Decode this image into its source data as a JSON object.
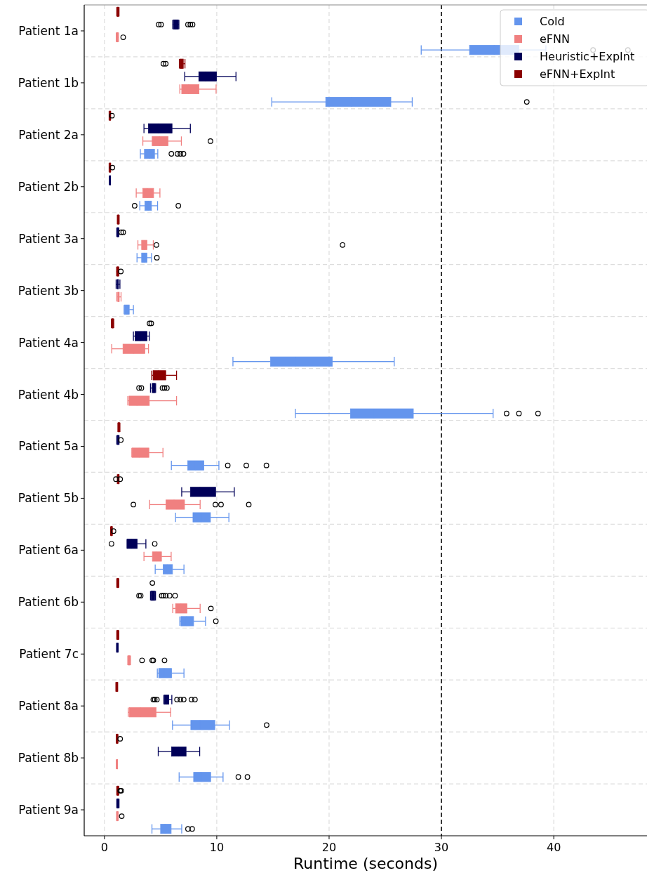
{
  "chart_data": {
    "type": "box",
    "orientation": "horizontal",
    "xlabel": "Runtime (seconds)",
    "categories": [
      "Patient 1a",
      "Patient 1b",
      "Patient 2a",
      "Patient 2b",
      "Patient 3a",
      "Patient 3b",
      "Patient 4a",
      "Patient 4b",
      "Patient 5a",
      "Patient 5b",
      "Patient 6a",
      "Patient 6b",
      "Patient 7c",
      "Patient 8a",
      "Patient 8b",
      "Patient 9a"
    ],
    "xlim": [
      -1.8,
      48.3
    ],
    "xticks": [
      0,
      10,
      20,
      30,
      40
    ],
    "grid": true,
    "legend": "top right",
    "ref_lines": [
      {
        "axis": "x",
        "value": 30,
        "color": "#000000",
        "line_style": "dashed"
      }
    ],
    "series": [
      {
        "name": "Cold",
        "color": "#6495ed",
        "boxes": [
          {
            "low": 28.2,
            "q1": 32.5,
            "median": 34.7,
            "q3": 36.9,
            "high": 39.3,
            "outliers": [
              43.5,
              46.6
            ]
          },
          {
            "low": 14.9,
            "q1": 19.7,
            "median": 22.0,
            "q3": 25.5,
            "high": 27.4,
            "outliers": [
              37.6
            ]
          },
          {
            "low": 3.2,
            "q1": 3.56,
            "median": 4.0,
            "q3": 4.46,
            "high": 4.75,
            "outliers": [
              5.96,
              6.5,
              6.77,
              7.04
            ]
          },
          {
            "low": 3.15,
            "q1": 3.6,
            "median": 3.9,
            "q3": 4.19,
            "high": 4.73,
            "outliers": [
              2.69,
              6.58
            ]
          },
          {
            "low": 2.9,
            "q1": 3.31,
            "median": 3.55,
            "q3": 3.79,
            "high": 4.19,
            "outliers": [
              4.67
            ]
          },
          {
            "low": 1.75,
            "q1": 1.79,
            "median": 2.0,
            "q3": 2.21,
            "high": 2.58
          },
          {
            "low": 11.44,
            "q1": 14.79,
            "median": 17.0,
            "q3": 20.29,
            "high": 25.8
          },
          {
            "low": 17.0,
            "q1": 21.9,
            "median": 24.0,
            "q3": 27.5,
            "high": 34.6,
            "outliers": [
              35.8,
              36.9,
              38.6
            ]
          },
          {
            "low": 5.96,
            "q1": 7.42,
            "median": 8.1,
            "q3": 8.85,
            "high": 10.19,
            "outliers": [
              10.98,
              12.63,
              14.42
            ]
          },
          {
            "low": 6.33,
            "q1": 7.88,
            "median": 8.6,
            "q3": 9.44,
            "high": 11.08
          },
          {
            "low": 4.52,
            "q1": 5.23,
            "median": 5.6,
            "q3": 6.06,
            "high": 7.08
          },
          {
            "low": 6.71,
            "q1": 6.81,
            "median": 7.3,
            "q3": 7.94,
            "high": 9.0,
            "outliers": [
              9.92
            ]
          },
          {
            "low": 4.71,
            "q1": 4.83,
            "median": 5.3,
            "q3": 5.98,
            "high": 7.08
          },
          {
            "low": 6.06,
            "q1": 7.69,
            "median": 8.5,
            "q3": 9.83,
            "high": 11.13,
            "outliers": [
              14.44
            ]
          },
          {
            "low": 6.65,
            "q1": 7.94,
            "median": 8.6,
            "q3": 9.46,
            "high": 10.56,
            "outliers": [
              11.92,
              12.73
            ]
          },
          {
            "low": 4.23,
            "q1": 5.0,
            "median": 5.4,
            "q3": 5.94,
            "high": 6.88,
            "outliers": [
              7.44,
              7.81
            ]
          }
        ]
      },
      {
        "name": "eFNN",
        "color": "#f08080",
        "boxes": [
          {
            "low": 1.05,
            "q1": 1.1,
            "median": 1.15,
            "q3": 1.2,
            "high": 1.25,
            "outliers": [
              1.67
            ]
          },
          {
            "low": 6.71,
            "q1": 6.88,
            "median": 7.5,
            "q3": 8.42,
            "high": 9.94
          },
          {
            "low": 3.42,
            "q1": 4.25,
            "median": 4.9,
            "q3": 5.67,
            "high": 6.85,
            "outliers": [
              9.44
            ]
          },
          {
            "low": 2.83,
            "q1": 3.42,
            "median": 3.8,
            "q3": 4.38,
            "high": 4.94
          },
          {
            "low": 2.98,
            "q1": 3.31,
            "median": 3.55,
            "q3": 3.79,
            "high": 4.35,
            "outliers": [
              4.63,
              21.2
            ]
          },
          {
            "low": 1.1,
            "q1": 1.18,
            "median": 1.25,
            "q3": 1.32,
            "high": 1.48
          },
          {
            "low": 0.65,
            "q1": 1.65,
            "median": 2.6,
            "q3": 3.6,
            "high": 3.92
          },
          {
            "low": 2.08,
            "q1": 2.19,
            "median": 2.9,
            "q3": 4.0,
            "high": 6.42
          },
          {
            "low": 2.44,
            "q1": 2.48,
            "median": 3.1,
            "q3": 3.96,
            "high": 5.21
          },
          {
            "low": 4.02,
            "q1": 5.48,
            "median": 6.2,
            "q3": 7.13,
            "high": 8.52,
            "outliers": [
              2.58,
              9.88,
              10.38,
              12.85
            ]
          },
          {
            "low": 3.52,
            "q1": 4.27,
            "median": 4.6,
            "q3": 5.08,
            "high": 5.94
          },
          {
            "low": 6.08,
            "q1": 6.33,
            "median": 6.8,
            "q3": 7.35,
            "high": 8.52,
            "outliers": [
              9.48
            ]
          },
          {
            "low": 2.08,
            "q1": 2.12,
            "median": 2.19,
            "q3": 2.28,
            "high": 2.32,
            "outliers": [
              3.35,
              4.25,
              4.35,
              5.35
            ]
          },
          {
            "low": 2.12,
            "q1": 2.21,
            "median": 3.2,
            "q3": 4.6,
            "high": 5.9
          },
          {
            "low": 1.05,
            "q1": 1.08,
            "median": 1.1,
            "q3": 1.13,
            "high": 1.16
          },
          {
            "low": 1.08,
            "q1": 1.11,
            "median": 1.15,
            "q3": 1.19,
            "high": 1.22,
            "outliers": [
              1.54
            ]
          }
        ]
      },
      {
        "name": "Heuristic+ExpInt",
        "color": "#000058",
        "boxes": [
          {
            "low": 6.08,
            "q1": 6.15,
            "median": 6.35,
            "q3": 6.58,
            "high": 6.63,
            "outliers": [
              4.83,
              5.04,
              7.44,
              7.65,
              7.85
            ]
          },
          {
            "low": 7.15,
            "q1": 8.4,
            "median": 9.0,
            "q3": 9.98,
            "high": 11.71
          },
          {
            "low": 3.52,
            "q1": 3.92,
            "median": 4.8,
            "q3": 6.02,
            "high": 7.65
          },
          {
            "low": 0.44,
            "q1": 0.46,
            "median": 0.48,
            "q3": 0.5,
            "high": 0.52
          },
          {
            "low": 1.1,
            "q1": 1.15,
            "median": 1.19,
            "q3": 1.23,
            "high": 1.28,
            "outliers": [
              1.5,
              1.67
            ]
          },
          {
            "low": 1.04,
            "q1": 1.13,
            "median": 1.19,
            "q3": 1.25,
            "high": 1.38
          },
          {
            "low": 2.58,
            "q1": 2.73,
            "median": 3.2,
            "q3": 3.79,
            "high": 4.0
          },
          {
            "low": 4.1,
            "q1": 4.25,
            "median": 4.4,
            "q3": 4.52,
            "high": 4.56,
            "outliers": [
              3.08,
              3.29,
              5.17,
              5.35,
              5.56
            ]
          },
          {
            "low": 1.1,
            "q1": 1.16,
            "median": 1.21,
            "q3": 1.26,
            "high": 1.3,
            "outliers": [
              1.46
            ]
          },
          {
            "low": 6.88,
            "q1": 7.65,
            "median": 8.5,
            "q3": 9.9,
            "high": 11.56
          },
          {
            "low": 2.02,
            "q1": 2.02,
            "median": 2.4,
            "q3": 2.92,
            "high": 3.69,
            "outliers": [
              0.63,
              4.48
            ]
          },
          {
            "low": 4.1,
            "q1": 4.17,
            "median": 4.3,
            "q3": 4.48,
            "high": 4.55,
            "outliers": [
              3.08,
              3.23,
              5.1,
              5.25,
              5.46,
              5.81,
              6.29
            ]
          },
          {
            "low": 1.08,
            "q1": 1.11,
            "median": 1.15,
            "q3": 1.19,
            "high": 1.22
          },
          {
            "low": 5.29,
            "q1": 5.33,
            "median": 5.5,
            "q3": 5.73,
            "high": 6.0,
            "outliers": [
              4.35,
              4.48,
              4.67,
              6.46,
              6.77,
              7.06,
              7.75,
              8.06
            ]
          },
          {
            "low": 4.79,
            "q1": 5.98,
            "median": 6.6,
            "q3": 7.27,
            "high": 8.48
          },
          {
            "low": 1.1,
            "q1": 1.14,
            "median": 1.19,
            "q3": 1.24,
            "high": 1.3
          }
        ]
      },
      {
        "name": "eFNN+ExpInt",
        "color": "#8b0000",
        "boxes": [
          {
            "low": 1.1,
            "q1": 1.15,
            "median": 1.2,
            "q3": 1.25,
            "high": 1.3
          },
          {
            "low": 6.67,
            "q1": 6.71,
            "median": 6.85,
            "q3": 7.02,
            "high": 7.17,
            "outliers": [
              5.25,
              5.46
            ]
          },
          {
            "low": 0.42,
            "q1": 0.45,
            "median": 0.48,
            "q3": 0.52,
            "high": 0.55,
            "outliers": [
              0.67
            ]
          },
          {
            "low": 0.42,
            "q1": 0.45,
            "median": 0.48,
            "q3": 0.52,
            "high": 0.55,
            "outliers": [
              0.71
            ]
          },
          {
            "low": 1.15,
            "q1": 1.18,
            "median": 1.23,
            "q3": 1.28,
            "high": 1.31
          },
          {
            "low": 1.08,
            "q1": 1.13,
            "median": 1.19,
            "q3": 1.24,
            "high": 1.28,
            "outliers": [
              1.46
            ]
          },
          {
            "low": 0.62,
            "q1": 0.66,
            "median": 0.73,
            "q3": 0.79,
            "high": 0.83,
            "outliers": [
              4.02,
              4.17
            ]
          },
          {
            "low": 4.21,
            "q1": 4.33,
            "median": 4.8,
            "q3": 5.46,
            "high": 6.42
          },
          {
            "low": 1.2,
            "q1": 1.24,
            "median": 1.29,
            "q3": 1.34,
            "high": 1.38
          },
          {
            "low": 1.15,
            "q1": 1.19,
            "median": 1.23,
            "q3": 1.27,
            "high": 1.3,
            "outliers": [
              1.02,
              1.4
            ]
          },
          {
            "low": 0.55,
            "q1": 0.59,
            "median": 0.63,
            "q3": 0.67,
            "high": 0.7,
            "outliers": [
              0.81
            ]
          },
          {
            "low": 1.1,
            "q1": 1.14,
            "median": 1.19,
            "q3": 1.24,
            "high": 1.28,
            "outliers": [
              4.27
            ]
          },
          {
            "low": 1.1,
            "q1": 1.14,
            "median": 1.19,
            "q3": 1.24,
            "high": 1.28
          },
          {
            "low": 1.02,
            "q1": 1.06,
            "median": 1.1,
            "q3": 1.14,
            "high": 1.18
          },
          {
            "low": 1.05,
            "q1": 1.09,
            "median": 1.13,
            "q3": 1.17,
            "high": 1.2,
            "outliers": [
              1.4
            ]
          },
          {
            "low": 1.1,
            "q1": 1.14,
            "median": 1.19,
            "q3": 1.24,
            "high": 1.28,
            "outliers": [
              1.4,
              1.5
            ]
          }
        ]
      }
    ]
  }
}
